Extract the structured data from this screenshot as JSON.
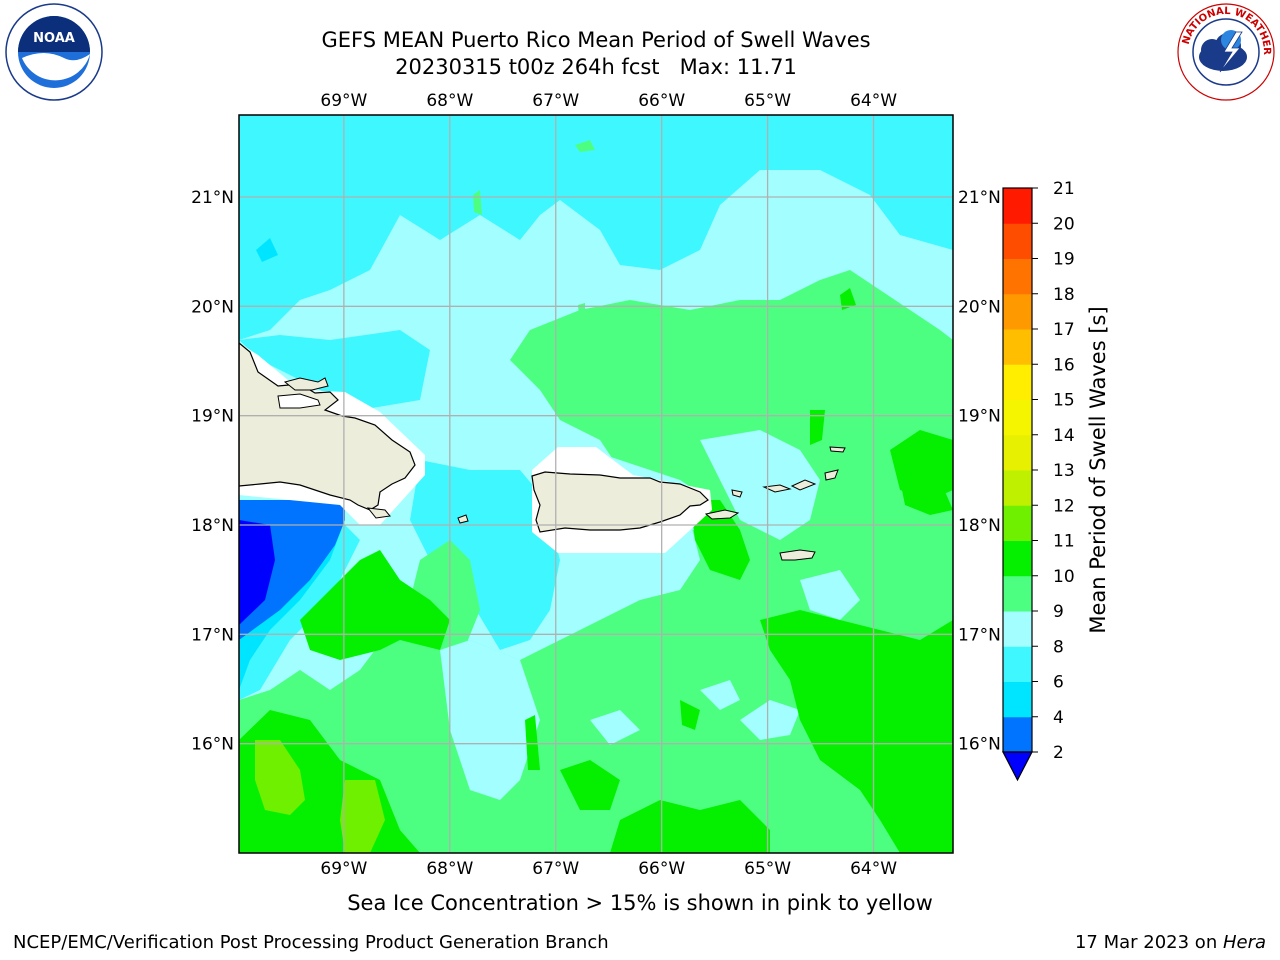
{
  "title": {
    "line1": "GEFS MEAN Puerto Rico Mean Period of Swell Waves",
    "line2": "20230315 t00z 264h fcst   Max: 11.71"
  },
  "logos": {
    "noaa": {
      "text": "NOAA",
      "ring_text": "NATIONAL OCEANIC AND ATMOSPHERIC ADMINISTRATION · U.S. DEPARTMENT OF COMMERCE"
    },
    "nws": {
      "ring_text": "NATIONAL WEATHER SERVICE"
    }
  },
  "map": {
    "lon_min": -69.99,
    "lon_max": -63.25,
    "lat_min": 15.0,
    "lat_max": 21.75,
    "lon_ticks": [
      {
        "lon": -69,
        "label": "69°W"
      },
      {
        "lon": -68,
        "label": "68°W"
      },
      {
        "lon": -67,
        "label": "67°W"
      },
      {
        "lon": -66,
        "label": "66°W"
      },
      {
        "lon": -65,
        "label": "65°W"
      },
      {
        "lon": -64,
        "label": "64°W"
      }
    ],
    "lat_ticks": [
      {
        "lat": 16,
        "label": "16°N"
      },
      {
        "lat": 17,
        "label": "17°N"
      },
      {
        "lat": 18,
        "label": "18°N"
      },
      {
        "lat": 19,
        "label": "19°N"
      },
      {
        "lat": 20,
        "label": "20°N"
      },
      {
        "lat": 21,
        "label": "21°N"
      }
    ],
    "land_color": "#ededdb",
    "grid_color": "#b0b0b0"
  },
  "colorbar": {
    "label": "Mean Period of Swell Waves [s]",
    "extend": "min",
    "bins": [
      {
        "from": 2,
        "to": 4,
        "color": "#0073ff"
      },
      {
        "from": 4,
        "to": 6,
        "color": "#00e5ff"
      },
      {
        "from": 6,
        "to": 8,
        "color": "#3ff7ff"
      },
      {
        "from": 8,
        "to": 9,
        "color": "#a3ffff"
      },
      {
        "from": 9,
        "to": 10,
        "color": "#4dff80"
      },
      {
        "from": 10,
        "to": 11,
        "color": "#05f000"
      },
      {
        "from": 11,
        "to": 12,
        "color": "#6ff000"
      },
      {
        "from": 12,
        "to": 13,
        "color": "#bff000"
      },
      {
        "from": 13,
        "to": 14,
        "color": "#e6f000"
      },
      {
        "from": 14,
        "to": 15,
        "color": "#f5f500"
      },
      {
        "from": 15,
        "to": 16,
        "color": "#ffee00"
      },
      {
        "from": 16,
        "to": 17,
        "color": "#ffbf00"
      },
      {
        "from": 17,
        "to": 18,
        "color": "#ff9900"
      },
      {
        "from": 18,
        "to": 19,
        "color": "#ff7300"
      },
      {
        "from": 19,
        "to": 20,
        "color": "#ff4d00"
      },
      {
        "from": 20,
        "to": 21,
        "color": "#ff1a00"
      }
    ],
    "under_color": "#0000ff",
    "tick_labels": [
      "2",
      "4",
      "6",
      "8",
      "9",
      "10",
      "11",
      "12",
      "13",
      "14",
      "15",
      "16",
      "17",
      "18",
      "19",
      "20",
      "21"
    ]
  },
  "note": "Sea Ice Concentration > 15% is shown in pink to yellow",
  "footer": {
    "left": "NCEP/EMC/Verification Post Processing Product Generation Branch",
    "right_date": "17 Mar 2023 on ",
    "right_host": "Hera"
  }
}
